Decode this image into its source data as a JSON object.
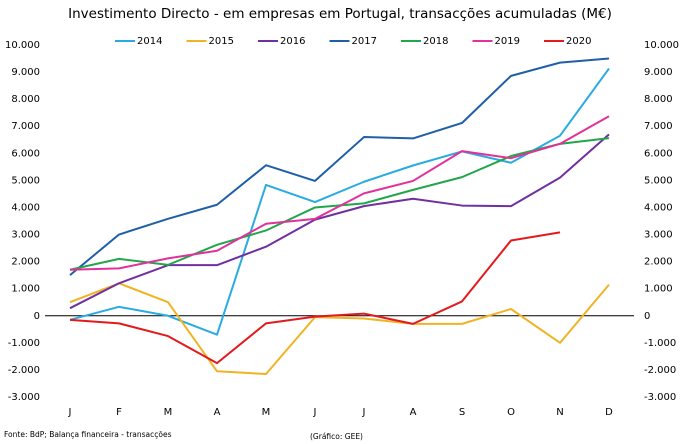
{
  "chart_data": {
    "type": "line",
    "title": "Investimento Directo - em empresas em Portugal, transacções acumuladas (M€)",
    "categories": [
      "J",
      "F",
      "M",
      "A",
      "M",
      "J",
      "J",
      "A",
      "S",
      "O",
      "N",
      "D"
    ],
    "series": [
      {
        "name": "2014",
        "color": "#29abe2",
        "values": [
          -150,
          330,
          0,
          -700,
          4830,
          4200,
          4950,
          5550,
          6070,
          5650,
          6650,
          9130
        ]
      },
      {
        "name": "2015",
        "color": "#f0b323",
        "values": [
          500,
          1200,
          500,
          -2050,
          -2150,
          -50,
          -100,
          -300,
          -300,
          250,
          -1000,
          1150
        ]
      },
      {
        "name": "2016",
        "color": "#7030a0",
        "values": [
          280,
          1200,
          1870,
          1870,
          2550,
          3550,
          4050,
          4320,
          4070,
          4050,
          5100,
          6700
        ]
      },
      {
        "name": "2017",
        "color": "#1f5fa8",
        "values": [
          1500,
          3000,
          3580,
          4100,
          5560,
          4980,
          6600,
          6550,
          7120,
          8860,
          9350,
          9500
        ]
      },
      {
        "name": "2018",
        "color": "#22a64a",
        "values": [
          1700,
          2100,
          1880,
          2620,
          3150,
          4000,
          4150,
          4650,
          5120,
          5900,
          6350,
          6560
        ]
      },
      {
        "name": "2019",
        "color": "#e0319c",
        "values": [
          1700,
          1750,
          2120,
          2400,
          3400,
          3580,
          4520,
          4980,
          6080,
          5820,
          6350,
          7370
        ]
      },
      {
        "name": "2020",
        "color": "#e31a1c",
        "values": [
          -150,
          -280,
          -750,
          -1750,
          -280,
          -30,
          80,
          -300,
          530,
          2780,
          3080,
          null
        ]
      }
    ],
    "ylim": [
      -3000,
      10000
    ],
    "yticks": [
      {
        "value": -3000,
        "label": "-3.000"
      },
      {
        "value": -2000,
        "label": "-2.000"
      },
      {
        "value": -1000,
        "label": "-1.000"
      },
      0,
      {
        "value": 1000,
        "label": "1.000"
      },
      {
        "value": 2000,
        "label": "2.000"
      },
      {
        "value": 3000,
        "label": "3.000"
      },
      {
        "value": 4000,
        "label": "4.000"
      },
      {
        "value": 5000,
        "label": "5.000"
      },
      {
        "value": 6000,
        "label": "6.000"
      },
      {
        "value": 7000,
        "label": "7.000"
      },
      {
        "value": 8000,
        "label": "8.000"
      },
      {
        "value": 9000,
        "label": "9.000"
      },
      {
        "value": 10000,
        "label": "10.000"
      }
    ],
    "y2lim": [
      -3000,
      10000
    ],
    "y2ticks": [
      {
        "value": -3000,
        "label": "-3.000"
      },
      {
        "value": -2000,
        "label": "-2.000"
      },
      {
        "value": -1000,
        "label": "-1.000"
      },
      0,
      {
        "value": 1000,
        "label": "1.000"
      },
      {
        "value": 2000,
        "label": "2.000"
      },
      {
        "value": 3000,
        "label": "3.000"
      },
      {
        "value": 4000,
        "label": "4.000"
      },
      {
        "value": 5000,
        "label": "5.000"
      },
      {
        "value": 6000,
        "label": "6.000"
      },
      {
        "value": 7000,
        "label": "7.000"
      },
      {
        "value": 8000,
        "label": "8.000"
      },
      {
        "value": 9000,
        "label": "9.000"
      },
      {
        "value": 10000,
        "label": "10.000"
      }
    ],
    "legend": "top",
    "source": "Fonte: BdP; Balança financeira - transacções",
    "credit": "(Gráfico: GEE)"
  }
}
